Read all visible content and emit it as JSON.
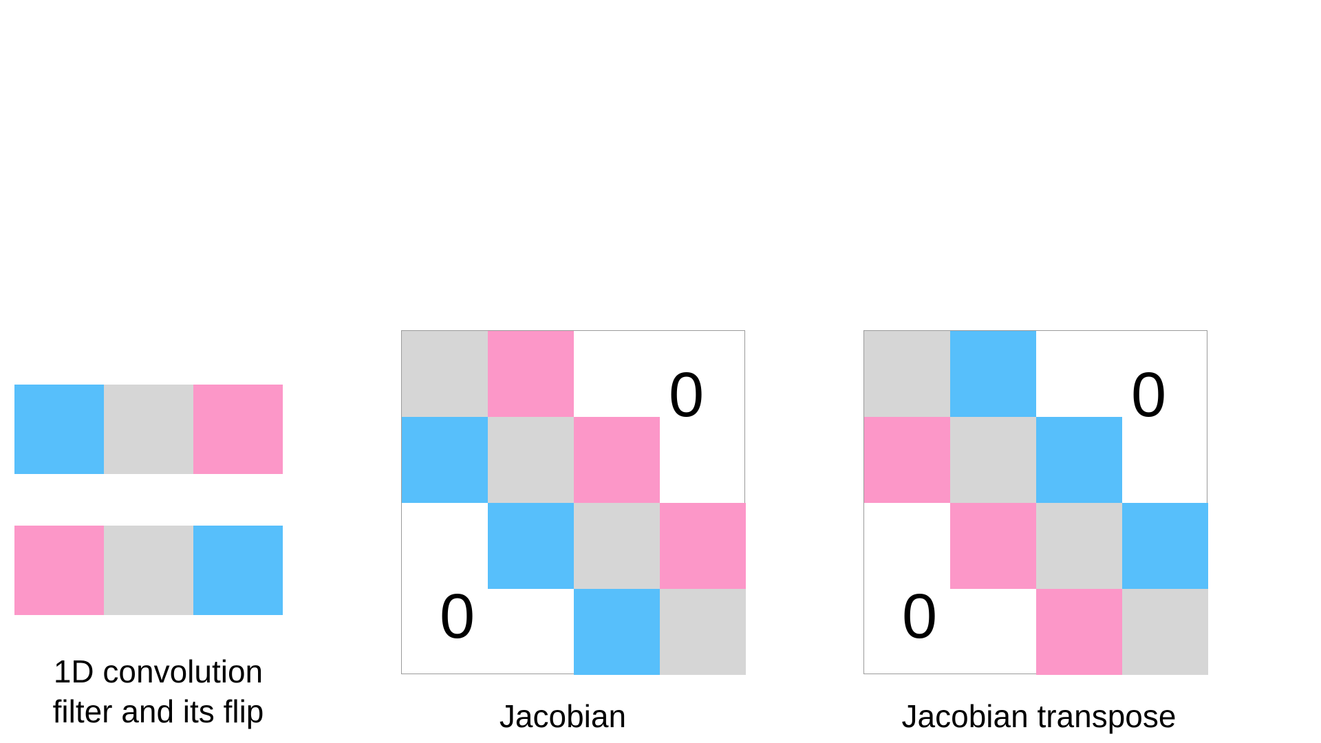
{
  "colors": {
    "blue": "#57bffb",
    "gray": "#d6d6d6",
    "pink": "#fc97c8"
  },
  "filter": {
    "top": [
      "blue",
      "gray",
      "pink"
    ],
    "bottom": [
      "pink",
      "gray",
      "blue"
    ],
    "caption_line1": "1D convolution",
    "caption_line2": "filter and its flip"
  },
  "jacobian": {
    "caption": "Jacobian",
    "zero_upper": "0",
    "zero_lower": "0",
    "cells": [
      {
        "row": 0,
        "col": 0,
        "color": "gray"
      },
      {
        "row": 0,
        "col": 1,
        "color": "pink"
      },
      {
        "row": 1,
        "col": 0,
        "color": "blue"
      },
      {
        "row": 1,
        "col": 1,
        "color": "gray"
      },
      {
        "row": 1,
        "col": 2,
        "color": "pink"
      },
      {
        "row": 2,
        "col": 1,
        "color": "blue"
      },
      {
        "row": 2,
        "col": 2,
        "color": "gray"
      },
      {
        "row": 2,
        "col": 3,
        "color": "pink"
      },
      {
        "row": 3,
        "col": 2,
        "color": "blue"
      },
      {
        "row": 3,
        "col": 3,
        "color": "gray"
      }
    ]
  },
  "jacobian_transpose": {
    "caption": "Jacobian transpose",
    "zero_upper": "0",
    "zero_lower": "0",
    "cells": [
      {
        "row": 0,
        "col": 0,
        "color": "gray"
      },
      {
        "row": 0,
        "col": 1,
        "color": "blue"
      },
      {
        "row": 1,
        "col": 0,
        "color": "pink"
      },
      {
        "row": 1,
        "col": 1,
        "color": "gray"
      },
      {
        "row": 1,
        "col": 2,
        "color": "blue"
      },
      {
        "row": 2,
        "col": 1,
        "color": "pink"
      },
      {
        "row": 2,
        "col": 2,
        "color": "gray"
      },
      {
        "row": 2,
        "col": 3,
        "color": "blue"
      },
      {
        "row": 3,
        "col": 2,
        "color": "pink"
      },
      {
        "row": 3,
        "col": 3,
        "color": "gray"
      }
    ]
  }
}
